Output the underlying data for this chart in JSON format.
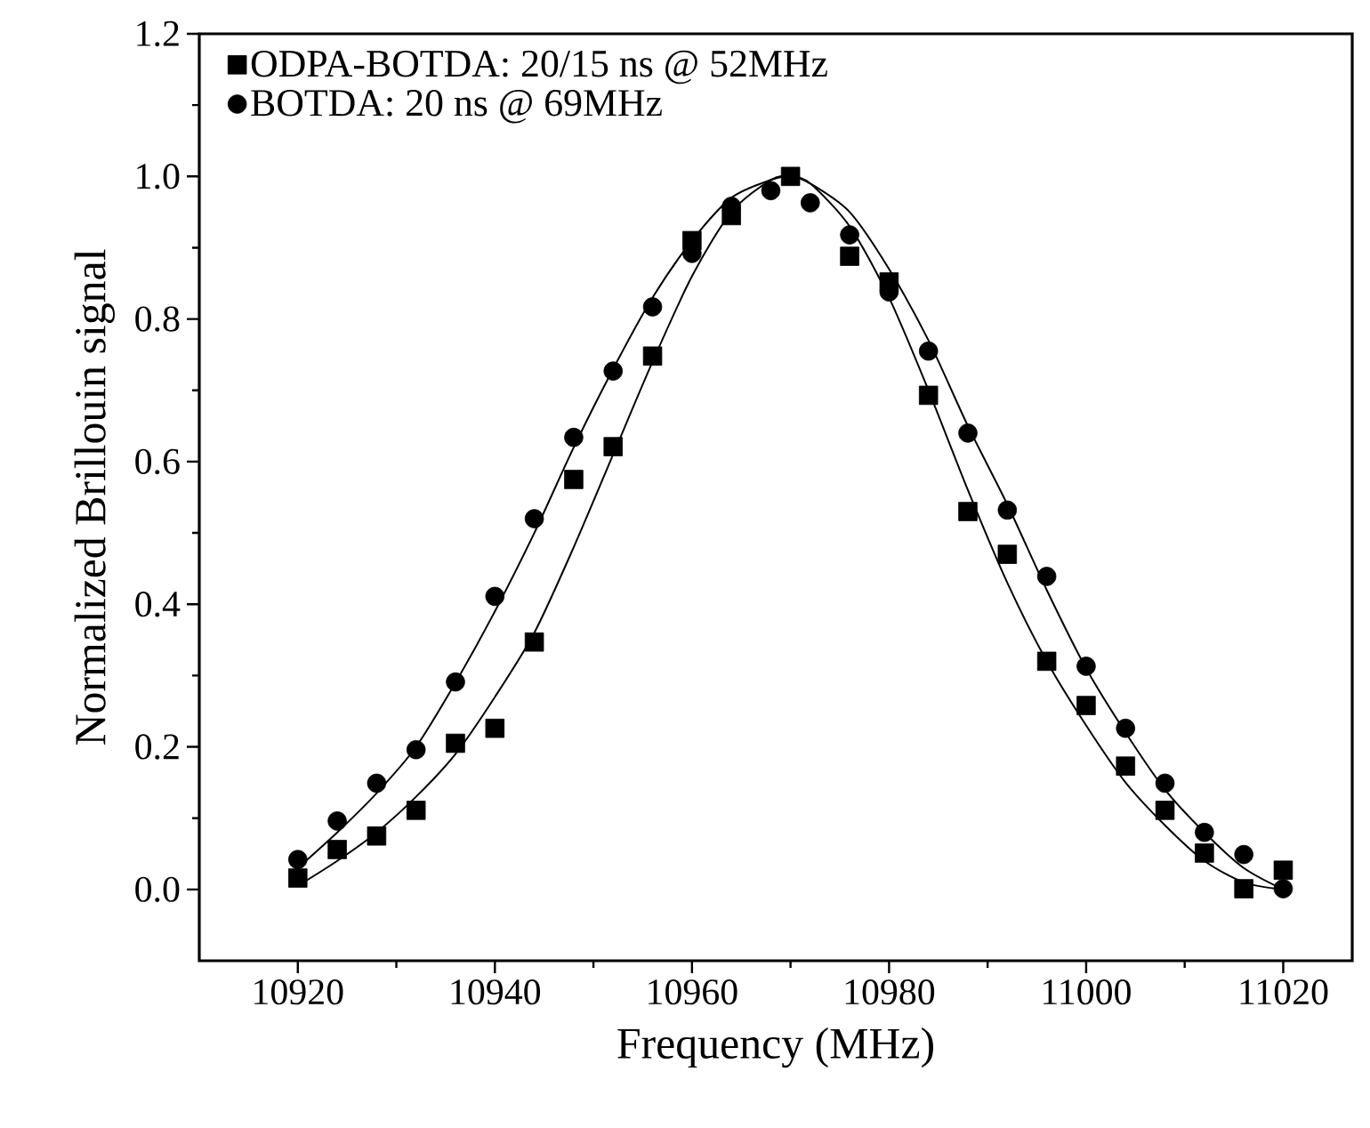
{
  "chart_data": {
    "type": "scatter",
    "xlabel": "Frequency (MHz)",
    "ylabel": "Normalized Brillouin signal",
    "xlim": [
      10910,
      11027
    ],
    "ylim": [
      -0.1,
      1.2
    ],
    "xticks": [
      10920,
      10940,
      10960,
      10980,
      11000,
      11020
    ],
    "yticks": [
      {
        "value": 0,
        "label": "0.0"
      },
      {
        "value": 0.2,
        "label": "0.2"
      },
      {
        "value": 0.4,
        "label": "0.4"
      },
      {
        "value": 0.6,
        "label": "0.6"
      },
      {
        "value": 0.8,
        "label": "0.8"
      },
      {
        "value": 1.0,
        "label": "1.0"
      },
      {
        "value": 1.2,
        "label": "1.2"
      }
    ],
    "legend": "top left",
    "grid": false,
    "series": [
      {
        "name": "ODPA-BOTDA: 20/15 ns @ 52MHz",
        "color": "#000000",
        "marker": "square",
        "x": [
          10920,
          10924,
          10928,
          10932,
          10936,
          10940,
          10944,
          10948,
          10952,
          10956,
          10960,
          10964,
          10968,
          10970,
          10972,
          10976,
          10980,
          10984,
          10988,
          10992,
          10996,
          11000,
          11004,
          11008,
          11012,
          11016,
          11020
        ],
        "values": [
          0.016,
          0.056,
          0.075,
          0.111,
          0.205,
          0.226,
          0.347,
          0.575,
          0.621,
          0.748,
          0.91,
          0.945,
          null,
          1.0,
          null,
          0.888,
          0.852,
          0.693,
          0.53,
          0.47,
          0.32,
          0.258,
          0.173,
          0.111,
          0.051,
          0.001,
          0.027
        ]
      },
      {
        "name": "BOTDA: 20 ns @ 69MHz",
        "color": "#000000",
        "marker": "circle",
        "x": [
          10920,
          10924,
          10928,
          10932,
          10936,
          10940,
          10944,
          10948,
          10952,
          10956,
          10960,
          10964,
          10968,
          10972,
          10976,
          10980,
          10984,
          10988,
          10992,
          10996,
          11000,
          11004,
          11008,
          11012,
          11016,
          11020
        ],
        "values": [
          0.042,
          0.096,
          0.149,
          0.196,
          0.291,
          0.411,
          0.52,
          0.634,
          0.727,
          0.817,
          0.892,
          0.958,
          0.98,
          0.963,
          0.918,
          0.838,
          0.755,
          0.64,
          0.532,
          0.439,
          0.313,
          0.226,
          0.149,
          0.08,
          0.049,
          0.001
        ]
      },
      {
        "type": "line",
        "color": "#000000",
        "marker": "none",
        "line_style": "solid",
        "x": [
          10920,
          10924,
          10928,
          10932,
          10936,
          10940,
          10944,
          10948,
          10952,
          10956,
          10960,
          10964,
          10968,
          10970,
          10972,
          10976,
          10980,
          10984,
          10988,
          10992,
          10996,
          11000,
          11004,
          11008,
          11012,
          11016,
          11020
        ],
        "values": [
          0.005,
          0.04,
          0.08,
          0.13,
          0.19,
          0.27,
          0.36,
          0.48,
          0.61,
          0.74,
          0.86,
          0.95,
          0.995,
          1.0,
          0.99,
          0.93,
          0.83,
          0.7,
          0.56,
          0.43,
          0.32,
          0.23,
          0.15,
          0.09,
          0.04,
          0.01,
          0.0
        ]
      },
      {
        "type": "line",
        "color": "#000000",
        "marker": "none",
        "line_style": "solid",
        "x": [
          10920,
          10924,
          10928,
          10932,
          10936,
          10940,
          10944,
          10948,
          10952,
          10956,
          10960,
          10964,
          10968,
          10970,
          10972,
          10976,
          10980,
          10984,
          10988,
          10992,
          10996,
          11000,
          11004,
          11008,
          11012,
          11016,
          11020
        ],
        "values": [
          0.03,
          0.08,
          0.135,
          0.2,
          0.29,
          0.39,
          0.5,
          0.62,
          0.73,
          0.83,
          0.91,
          0.97,
          0.995,
          1.0,
          0.99,
          0.95,
          0.87,
          0.77,
          0.65,
          0.54,
          0.42,
          0.31,
          0.22,
          0.14,
          0.08,
          0.03,
          0.0
        ]
      }
    ]
  }
}
